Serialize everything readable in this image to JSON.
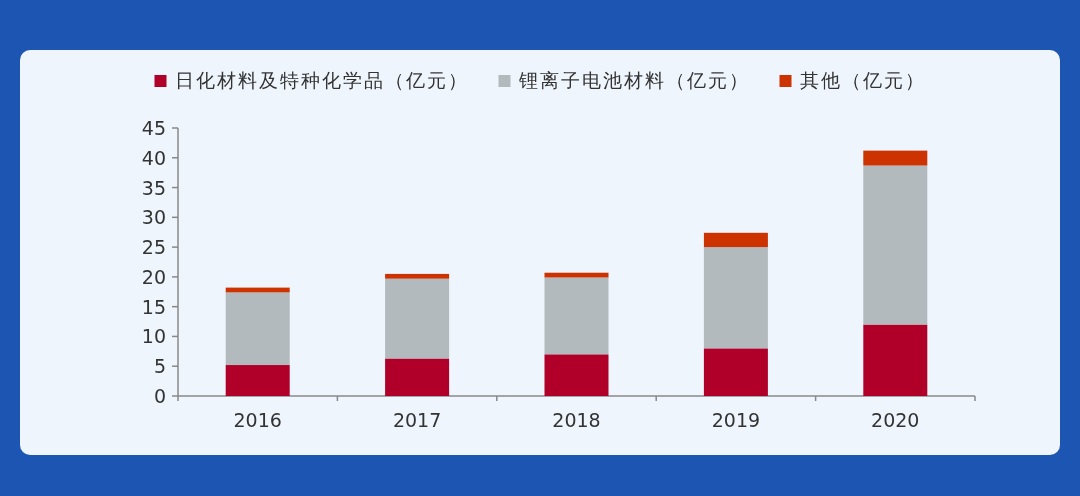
{
  "chart_data": {
    "type": "bar",
    "stacked": true,
    "categories": [
      "2016",
      "2017",
      "2018",
      "2019",
      "2020"
    ],
    "series": [
      {
        "name": "日化材料及特种化学品（亿元）",
        "color": "#b0002a",
        "values": [
          5.2,
          6.3,
          7.0,
          8.0,
          12.0
        ]
      },
      {
        "name": "锂离子电池材料（亿元）",
        "color": "#b3babd",
        "values": [
          12.2,
          13.4,
          12.9,
          17.0,
          26.7
        ]
      },
      {
        "name": "其他（亿元）",
        "color": "#cc3300",
        "values": [
          0.8,
          0.8,
          0.8,
          2.4,
          2.5
        ]
      }
    ],
    "ylim": [
      0,
      45
    ],
    "yticks": [
      0,
      5,
      10,
      15,
      20,
      25,
      30,
      35,
      40,
      45
    ],
    "grid": false,
    "legend": "top"
  }
}
